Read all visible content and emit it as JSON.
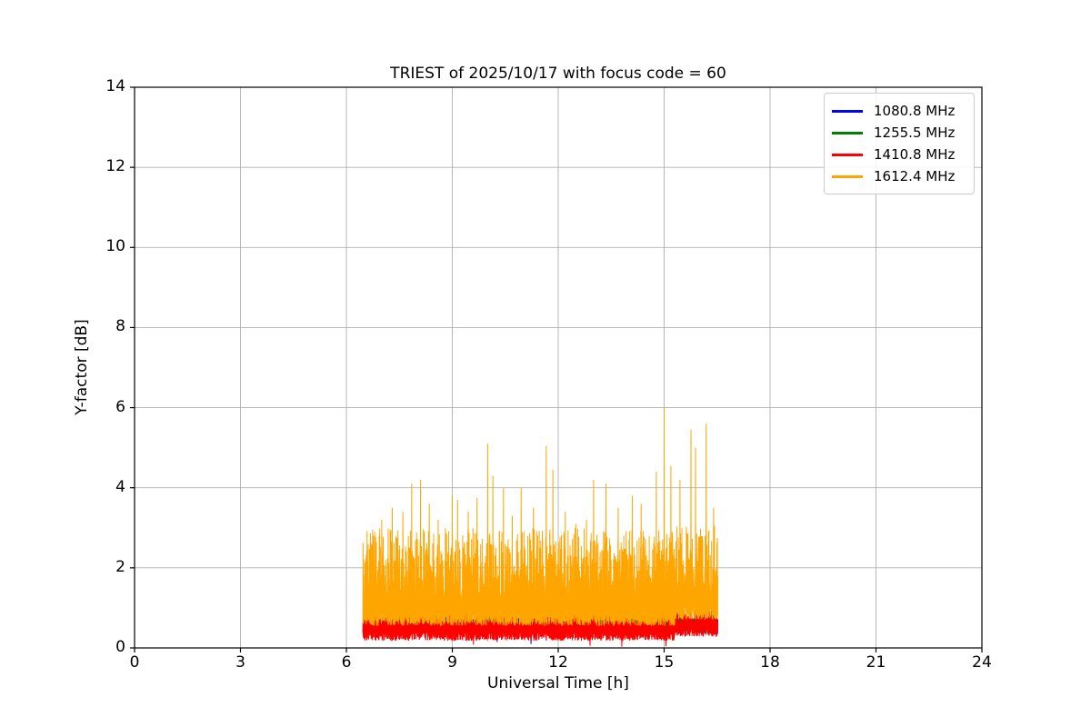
{
  "chart_data": {
    "type": "line",
    "title": "TRIEST of 2025/10/17 with focus code = 60",
    "xlabel": "Universal Time [h]",
    "ylabel": "Y-factor [dB]",
    "xlim": [
      0,
      24
    ],
    "ylim": [
      0,
      14
    ],
    "xticks": [
      0,
      3,
      6,
      9,
      12,
      15,
      18,
      21,
      24
    ],
    "yticks": [
      0,
      2,
      4,
      6,
      8,
      10,
      12,
      14
    ],
    "grid": true,
    "grid_color": "#b0b0b0",
    "frame_color": "#000000",
    "background": "#ffffff",
    "legend": {
      "position": "upper right",
      "border_color": "#cccccc"
    },
    "time_range": {
      "start": 6.47,
      "end": 16.52
    },
    "series": [
      {
        "name": "1080.8 MHz",
        "color": "#0000ff",
        "seed": 101,
        "n": 1800,
        "band_low": [
          0.35,
          0.5
        ],
        "band_high": [
          0.55,
          0.78
        ],
        "high_skew": 1.5,
        "dips": [
          [
            10.27,
            0.15
          ],
          [
            11.23,
            0.1
          ]
        ]
      },
      {
        "name": "1255.5 MHz",
        "color": "#008000",
        "seed": 202,
        "n": 1800,
        "band_low": [
          0.35,
          0.55
        ],
        "band_high": [
          0.6,
          0.85
        ],
        "high_skew": 1.5,
        "peaks": [
          [
            6.55,
            0.95
          ],
          [
            15.45,
            0.98
          ],
          [
            15.55,
            1.0
          ],
          [
            15.75,
            1.02
          ],
          [
            15.9,
            0.95
          ],
          [
            16.25,
            1.05
          ],
          [
            16.35,
            1.0
          ],
          [
            16.45,
            0.98
          ]
        ],
        "peak_falloff": 0.04
      },
      {
        "name": "1410.8 MHz",
        "color": "#ff0000",
        "seed": 303,
        "n": 2600,
        "band_low": [
          0.18,
          0.42
        ],
        "band_high": [
          0.5,
          0.85
        ],
        "high_skew": 1.6,
        "dips": [
          [
            9.6,
            0.08
          ],
          [
            12.9,
            0.05
          ],
          [
            13.8,
            0.03
          ],
          [
            15.05,
            0.04
          ]
        ],
        "end_lift": {
          "from": 15.3,
          "add": 0.1
        }
      },
      {
        "name": "1612.4 MHz",
        "color": "#ffa500",
        "seed": 404,
        "n": 3200,
        "band_low": [
          0.55,
          0.9
        ],
        "band_high": [
          1.2,
          3.0
        ],
        "high_skew": 2.2,
        "end_lift": {
          "from": 15.3,
          "add": 0.15
        },
        "peaks": [
          [
            6.55,
            2.1
          ],
          [
            6.8,
            2.9
          ],
          [
            7.0,
            3.2
          ],
          [
            7.3,
            3.5
          ],
          [
            7.6,
            3.4
          ],
          [
            7.85,
            4.1
          ],
          [
            8.1,
            4.2
          ],
          [
            8.35,
            3.6
          ],
          [
            8.6,
            3.2
          ],
          [
            9.0,
            3.8
          ],
          [
            9.15,
            3.7
          ],
          [
            9.45,
            3.4
          ],
          [
            9.7,
            3.75
          ],
          [
            10.0,
            5.1
          ],
          [
            10.15,
            4.3
          ],
          [
            10.45,
            4.0
          ],
          [
            10.7,
            3.3
          ],
          [
            10.95,
            4.0
          ],
          [
            11.3,
            3.5
          ],
          [
            11.66,
            5.05
          ],
          [
            11.85,
            4.45
          ],
          [
            12.2,
            3.4
          ],
          [
            12.5,
            3.1
          ],
          [
            12.8,
            3.2
          ],
          [
            13.0,
            4.2
          ],
          [
            13.35,
            4.1
          ],
          [
            13.7,
            3.5
          ],
          [
            14.1,
            3.8
          ],
          [
            14.35,
            3.6
          ],
          [
            14.78,
            4.4
          ],
          [
            15.0,
            6.0
          ],
          [
            15.19,
            4.55
          ],
          [
            15.45,
            4.2
          ],
          [
            15.76,
            5.45
          ],
          [
            15.89,
            5.0
          ],
          [
            16.19,
            5.6
          ],
          [
            16.4,
            3.5
          ]
        ],
        "peak_falloff": 0.45
      }
    ]
  }
}
